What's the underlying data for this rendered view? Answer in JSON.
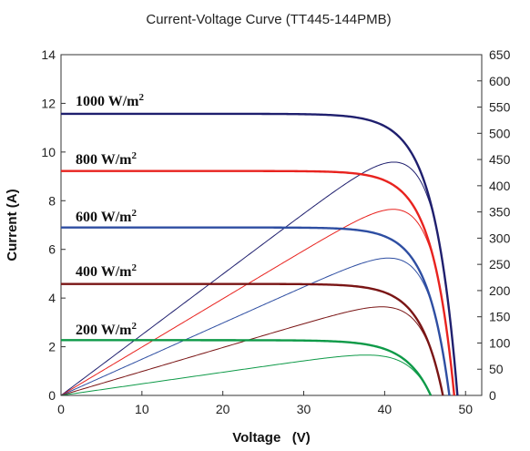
{
  "chart_data": {
    "type": "line",
    "title": "Current-Voltage Curve (TT445-144PMB)",
    "xlabel": "Voltage   (V)",
    "ylabel": "Current (A)",
    "xlim": [
      0,
      52
    ],
    "ylim": [
      0,
      14
    ],
    "y2lim": [
      0,
      650
    ],
    "xticks": [
      0,
      10,
      20,
      30,
      40,
      50
    ],
    "yticks": [
      0,
      2,
      4,
      6,
      8,
      10,
      12,
      14
    ],
    "y2ticks": [
      0,
      50,
      100,
      150,
      200,
      250,
      300,
      350,
      400,
      450,
      500,
      550,
      600,
      650
    ],
    "grid": false,
    "series": [
      {
        "name": "1000 W/m2",
        "label_base": "1000 W/m",
        "label_sup": "2",
        "color": "#1f1f6e",
        "isc": 11.57,
        "voc": 49.0,
        "vmp": 41.2,
        "imp": 10.8,
        "pmax": 445,
        "label_voltage": 1.8,
        "label_current": 11.9
      },
      {
        "name": "800 W/m2",
        "label_base": "800 W/m",
        "label_sup": "2",
        "color": "#e8231f",
        "isc": 9.22,
        "voc": 48.6,
        "vmp": 40.9,
        "imp": 8.68,
        "pmax": 355,
        "label_voltage": 1.8,
        "label_current": 9.5
      },
      {
        "name": "600 W/m2",
        "label_base": "600 W/m",
        "label_sup": "2",
        "color": "#2e4ea2",
        "isc": 6.9,
        "voc": 48.0,
        "vmp": 40.7,
        "imp": 6.43,
        "pmax": 262,
        "label_voltage": 1.8,
        "label_current": 7.15
      },
      {
        "name": "400 W/m2",
        "label_base": "400 W/m",
        "label_sup": "2",
        "color": "#7a1515",
        "isc": 4.58,
        "voc": 47.2,
        "vmp": 40.4,
        "imp": 4.18,
        "pmax": 169,
        "label_voltage": 1.8,
        "label_current": 4.9
      },
      {
        "name": "200 W/m2",
        "label_base": "200 W/m",
        "label_sup": "2",
        "color": "#0e9a48",
        "isc": 2.27,
        "voc": 45.7,
        "vmp": 39.8,
        "imp": 1.93,
        "pmax": 77,
        "label_voltage": 1.8,
        "label_current": 2.5
      }
    ]
  }
}
